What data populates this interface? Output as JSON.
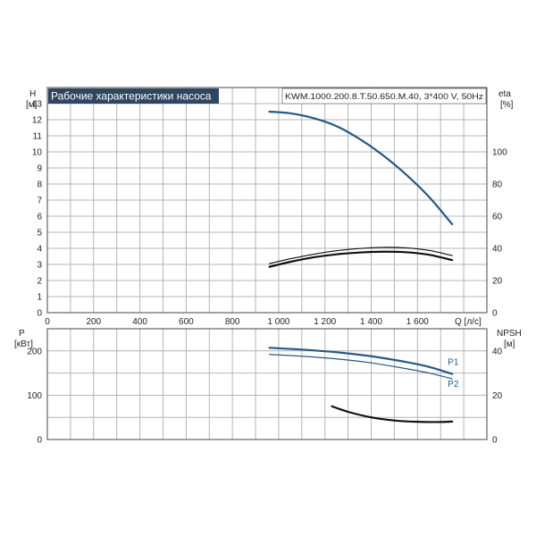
{
  "chart_data": [
    {
      "type": "line",
      "title": "Рабочие характеристики насоса",
      "subtitle": "KWM.1000.200.8.T.50.650.M.40, 3*400 V, 50Hz",
      "xlabel": "Q [л/с]",
      "ylabel_left": "H",
      "ylabel_left_unit": "[м]",
      "ylabel_right": "eta",
      "ylabel_right_unit": "[%]",
      "xlim": [
        0,
        1900
      ],
      "ylim_left": [
        0,
        14
      ],
      "ylim_right": [
        0,
        140
      ],
      "grid": true,
      "x_ticks": [
        0,
        200,
        400,
        600,
        800,
        1000,
        1200,
        1400,
        1600
      ],
      "x_tick_labels": [
        "0",
        "200",
        "400",
        "600",
        "800",
        "1 000",
        "1 200",
        "1 400",
        "1 600"
      ],
      "y_left_ticks": [
        0,
        1,
        2,
        3,
        4,
        5,
        6,
        7,
        8,
        9,
        10,
        11,
        12,
        13
      ],
      "y_right_ticks": [
        0,
        20,
        40,
        60,
        80,
        100
      ],
      "series": [
        {
          "axis": "left",
          "color": "#1f5a8f",
          "width": 2.2,
          "x": [
            960,
            1050,
            1150,
            1250,
            1350,
            1450,
            1550,
            1650,
            1750
          ],
          "y": [
            12.5,
            12.4,
            12.1,
            11.6,
            10.8,
            9.8,
            8.6,
            7.2,
            5.5
          ]
        },
        {
          "axis": "right",
          "color": "#111111",
          "width": 1.2,
          "x": [
            960,
            1050,
            1150,
            1250,
            1350,
            1450,
            1550,
            1650,
            1750
          ],
          "y": [
            30.5,
            33.5,
            36.3,
            38.5,
            39.9,
            40.6,
            40.3,
            38.7,
            35.5
          ]
        },
        {
          "axis": "right",
          "color": "#111111",
          "width": 2.2,
          "x": [
            960,
            1050,
            1150,
            1250,
            1350,
            1450,
            1550,
            1650,
            1750
          ],
          "y": [
            28.5,
            31.6,
            34.4,
            36.3,
            37.4,
            37.9,
            37.6,
            36.0,
            32.7
          ]
        }
      ]
    },
    {
      "type": "line",
      "xlabel": "",
      "ylabel_left": "P",
      "ylabel_left_unit": "[кВт]",
      "ylabel_right": "NPSH",
      "ylabel_right_unit": "[м]",
      "xlim": [
        0,
        1900
      ],
      "ylim_left": [
        0,
        250
      ],
      "ylim_right": [
        0,
        50
      ],
      "grid": true,
      "y_left_ticks": [
        0,
        100,
        200
      ],
      "y_right_ticks": [
        0,
        20,
        40
      ],
      "series": [
        {
          "name": "P1",
          "axis": "left",
          "color": "#1f5a8f",
          "width": 2.2,
          "x": [
            960,
            1100,
            1250,
            1400,
            1550,
            1650,
            1750
          ],
          "y": [
            207,
            203,
            197,
            188,
            175,
            164,
            148
          ]
        },
        {
          "name": "P2",
          "axis": "left",
          "color": "#1f5a8f",
          "width": 1.2,
          "x": [
            960,
            1100,
            1250,
            1400,
            1550,
            1650,
            1750
          ],
          "y": [
            192,
            188,
            182,
            173,
            160,
            150,
            137
          ]
        },
        {
          "axis": "right",
          "color": "#111111",
          "width": 2.2,
          "x": [
            1230,
            1300,
            1400,
            1500,
            1600,
            1700,
            1750
          ],
          "y": [
            15.0,
            12.5,
            10.0,
            8.6,
            8.0,
            7.9,
            8.1
          ]
        }
      ]
    }
  ]
}
